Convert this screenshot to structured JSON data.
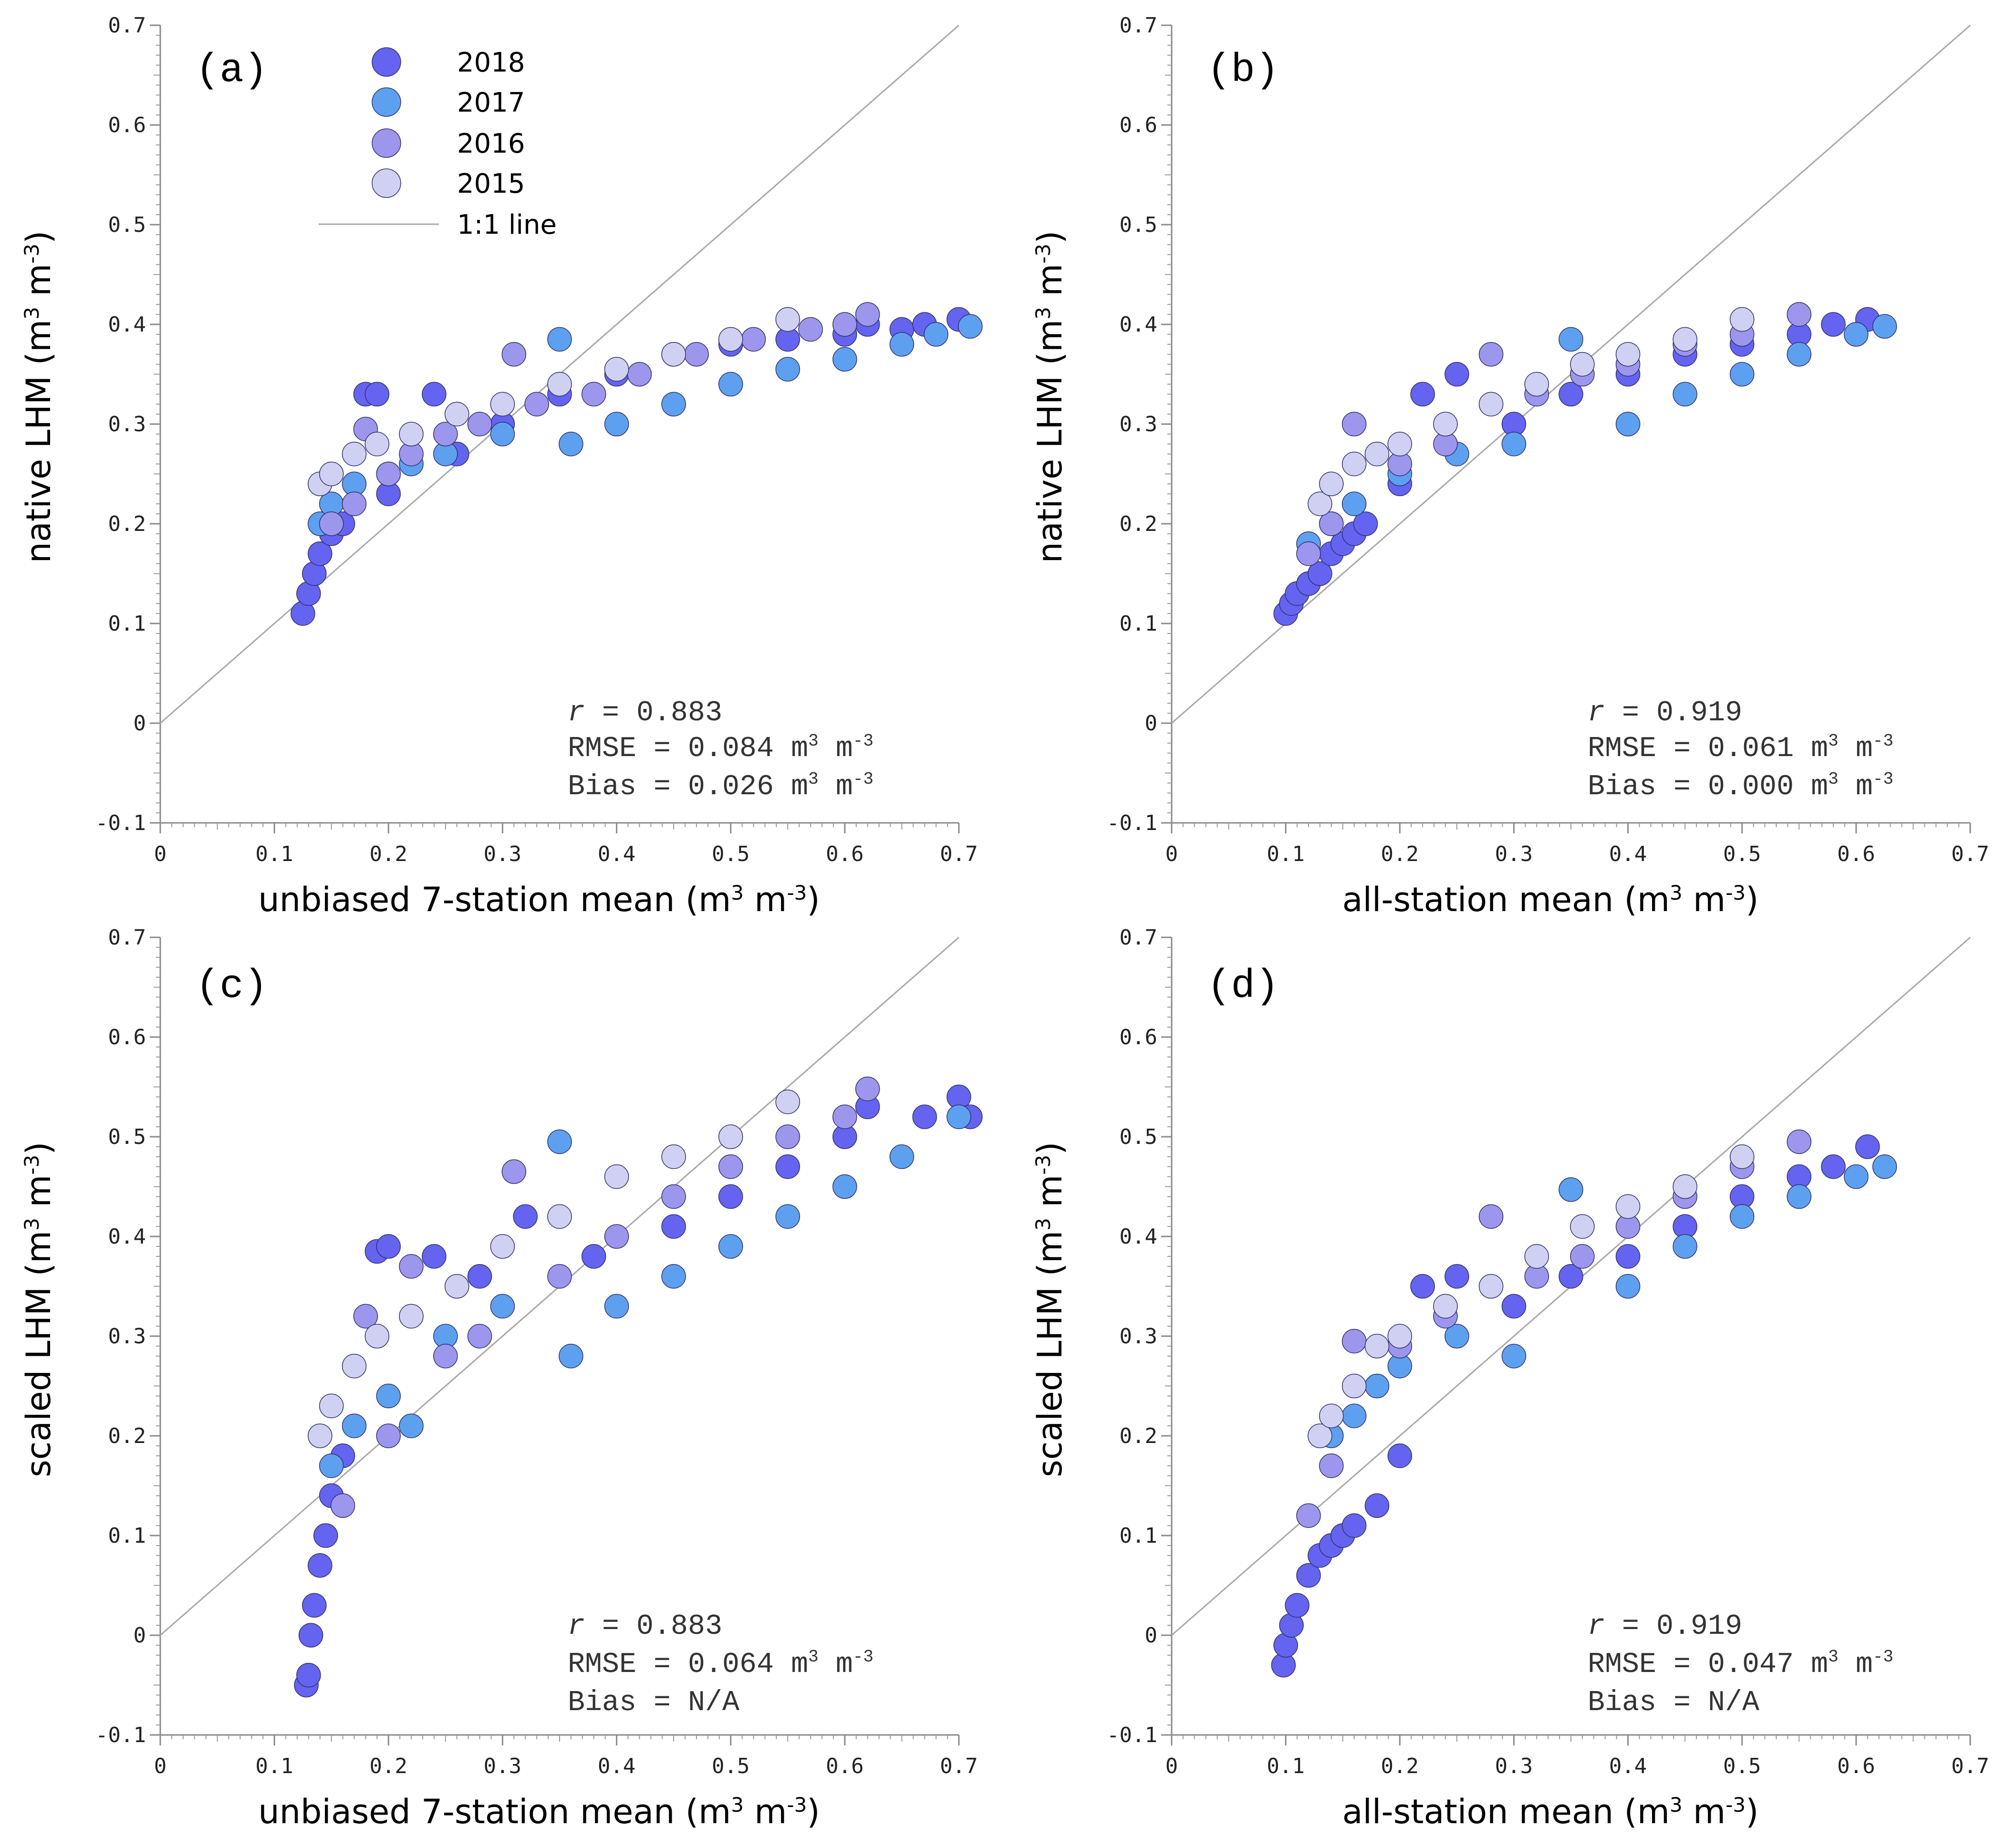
{
  "colors": {
    "2018": "#6464f0",
    "2017": "#5ea0f0",
    "2016": "#9c96ec",
    "2015": "#d0d0f2",
    "line": "#a8a8a8"
  },
  "legend": {
    "entries": [
      "2018",
      "2017",
      "2016",
      "2015"
    ],
    "line_label": "1:1 line"
  },
  "chart_data": [
    {
      "panel": "(a)",
      "type": "scatter",
      "xlabel": "unbiased 7-station mean (m³ m⁻³)",
      "xlabel_main": "unbiased 7-station mean (m",
      "ylabel_main": "native LHM (m",
      "xlim": [
        0,
        0.7
      ],
      "ylim": [
        -0.1,
        0.7
      ],
      "xticks": [
        "0",
        "0.1",
        "0.2",
        "0.3",
        "0.4",
        "0.5",
        "0.6",
        "0.7"
      ],
      "yticks": [
        "-0.1",
        "0",
        "0.1",
        "0.2",
        "0.3",
        "0.4",
        "0.5",
        "0.6",
        "0.7"
      ],
      "stats": {
        "r": "= 0.883",
        "rmse": "RMSE = 0.084 m",
        "bias": "Bias = 0.026 m",
        "bias_unit": true
      },
      "series": [
        {
          "name": "2018",
          "x": [
            0.125,
            0.13,
            0.135,
            0.14,
            0.15,
            0.16,
            0.18,
            0.19,
            0.2,
            0.24,
            0.26,
            0.3,
            0.35,
            0.4,
            0.45,
            0.5,
            0.55,
            0.6,
            0.62,
            0.65,
            0.67,
            0.7
          ],
          "y": [
            0.11,
            0.13,
            0.15,
            0.17,
            0.19,
            0.2,
            0.33,
            0.33,
            0.23,
            0.33,
            0.27,
            0.3,
            0.33,
            0.35,
            0.37,
            0.38,
            0.385,
            0.39,
            0.4,
            0.395,
            0.4,
            0.405
          ]
        },
        {
          "name": "2017",
          "x": [
            0.14,
            0.15,
            0.17,
            0.2,
            0.22,
            0.25,
            0.3,
            0.35,
            0.36,
            0.4,
            0.45,
            0.5,
            0.55,
            0.6,
            0.65,
            0.68,
            0.71
          ],
          "y": [
            0.2,
            0.22,
            0.24,
            0.25,
            0.26,
            0.27,
            0.29,
            0.385,
            0.28,
            0.3,
            0.32,
            0.34,
            0.355,
            0.365,
            0.38,
            0.39,
            0.398
          ]
        },
        {
          "name": "2016",
          "x": [
            0.15,
            0.17,
            0.18,
            0.2,
            0.22,
            0.25,
            0.28,
            0.31,
            0.33,
            0.38,
            0.42,
            0.47,
            0.52,
            0.57,
            0.6,
            0.62
          ],
          "y": [
            0.2,
            0.22,
            0.295,
            0.25,
            0.27,
            0.29,
            0.3,
            0.37,
            0.32,
            0.33,
            0.35,
            0.37,
            0.385,
            0.395,
            0.4,
            0.41
          ]
        },
        {
          "name": "2015",
          "x": [
            0.14,
            0.15,
            0.17,
            0.19,
            0.22,
            0.26,
            0.3,
            0.35,
            0.4,
            0.45,
            0.5,
            0.55
          ],
          "y": [
            0.24,
            0.25,
            0.27,
            0.28,
            0.29,
            0.31,
            0.32,
            0.34,
            0.355,
            0.37,
            0.385,
            0.405
          ]
        }
      ]
    },
    {
      "panel": "(b)",
      "type": "scatter",
      "xlabel_main": "all-station mean (m",
      "ylabel_main": "native LHM (m",
      "xlim": [
        0,
        0.7
      ],
      "ylim": [
        -0.1,
        0.7
      ],
      "xticks": [
        "0",
        "0.1",
        "0.2",
        "0.3",
        "0.4",
        "0.5",
        "0.6",
        "0.7"
      ],
      "yticks": [
        "-0.1",
        "0",
        "0.1",
        "0.2",
        "0.3",
        "0.4",
        "0.5",
        "0.6",
        "0.7"
      ],
      "stats": {
        "r": "= 0.919",
        "rmse": "RMSE = 0.061 m",
        "bias": "Bias = 0.000 m",
        "bias_unit": true
      },
      "series": [
        {
          "name": "2018",
          "x": [
            0.1,
            0.105,
            0.11,
            0.12,
            0.13,
            0.14,
            0.15,
            0.16,
            0.17,
            0.2,
            0.22,
            0.25,
            0.3,
            0.35,
            0.4,
            0.45,
            0.5,
            0.55,
            0.58,
            0.61
          ],
          "y": [
            0.11,
            0.12,
            0.13,
            0.14,
            0.15,
            0.17,
            0.18,
            0.19,
            0.2,
            0.24,
            0.33,
            0.35,
            0.3,
            0.33,
            0.35,
            0.37,
            0.38,
            0.39,
            0.4,
            0.405
          ]
        },
        {
          "name": "2017",
          "x": [
            0.12,
            0.14,
            0.16,
            0.2,
            0.25,
            0.3,
            0.35,
            0.4,
            0.45,
            0.5,
            0.55,
            0.6,
            0.625
          ],
          "y": [
            0.18,
            0.2,
            0.22,
            0.25,
            0.27,
            0.28,
            0.385,
            0.3,
            0.33,
            0.35,
            0.37,
            0.39,
            0.398
          ]
        },
        {
          "name": "2016",
          "x": [
            0.12,
            0.14,
            0.16,
            0.2,
            0.24,
            0.28,
            0.32,
            0.36,
            0.4,
            0.45,
            0.5,
            0.55
          ],
          "y": [
            0.17,
            0.2,
            0.3,
            0.26,
            0.28,
            0.37,
            0.33,
            0.35,
            0.36,
            0.38,
            0.39,
            0.41
          ]
        },
        {
          "name": "2015",
          "x": [
            0.13,
            0.14,
            0.16,
            0.18,
            0.2,
            0.24,
            0.28,
            0.32,
            0.36,
            0.4,
            0.45,
            0.5
          ],
          "y": [
            0.22,
            0.24,
            0.26,
            0.27,
            0.28,
            0.3,
            0.32,
            0.34,
            0.36,
            0.37,
            0.385,
            0.405
          ]
        }
      ]
    },
    {
      "panel": "(c)",
      "type": "scatter",
      "xlabel_main": "unbiased 7-station mean (m",
      "ylabel_main": "scaled LHM (m",
      "xlim": [
        0,
        0.7
      ],
      "ylim": [
        -0.1,
        0.7
      ],
      "xticks": [
        "0",
        "0.1",
        "0.2",
        "0.3",
        "0.4",
        "0.5",
        "0.6",
        "0.7"
      ],
      "yticks": [
        "-0.1",
        "0",
        "0.1",
        "0.2",
        "0.3",
        "0.4",
        "0.5",
        "0.6",
        "0.7"
      ],
      "stats": {
        "r": "= 0.883",
        "rmse": "RMSE = 0.064 m",
        "bias": "Bias = N/A",
        "bias_unit": false
      },
      "series": [
        {
          "name": "2018",
          "x": [
            0.128,
            0.13,
            0.132,
            0.135,
            0.14,
            0.145,
            0.15,
            0.16,
            0.19,
            0.2,
            0.24,
            0.28,
            0.32,
            0.38,
            0.45,
            0.5,
            0.55,
            0.6,
            0.62,
            0.67,
            0.7,
            0.71
          ],
          "y": [
            -0.05,
            -0.04,
            0.0,
            0.03,
            0.07,
            0.1,
            0.14,
            0.18,
            0.385,
            0.39,
            0.38,
            0.36,
            0.42,
            0.38,
            0.41,
            0.44,
            0.47,
            0.5,
            0.53,
            0.52,
            0.54,
            0.52
          ]
        },
        {
          "name": "2017",
          "x": [
            0.15,
            0.17,
            0.2,
            0.22,
            0.25,
            0.3,
            0.35,
            0.36,
            0.4,
            0.45,
            0.5,
            0.55,
            0.6,
            0.65,
            0.7
          ],
          "y": [
            0.17,
            0.21,
            0.24,
            0.21,
            0.3,
            0.33,
            0.495,
            0.28,
            0.33,
            0.36,
            0.39,
            0.42,
            0.45,
            0.48,
            0.52
          ]
        },
        {
          "name": "2016",
          "x": [
            0.16,
            0.18,
            0.2,
            0.22,
            0.25,
            0.28,
            0.31,
            0.35,
            0.4,
            0.45,
            0.5,
            0.55,
            0.6,
            0.62
          ],
          "y": [
            0.13,
            0.32,
            0.2,
            0.37,
            0.28,
            0.3,
            0.465,
            0.36,
            0.4,
            0.44,
            0.47,
            0.5,
            0.52,
            0.548
          ]
        },
        {
          "name": "2015",
          "x": [
            0.14,
            0.15,
            0.17,
            0.19,
            0.22,
            0.26,
            0.3,
            0.35,
            0.4,
            0.45,
            0.5,
            0.55
          ],
          "y": [
            0.2,
            0.23,
            0.27,
            0.3,
            0.32,
            0.35,
            0.39,
            0.42,
            0.46,
            0.48,
            0.5,
            0.535
          ]
        }
      ]
    },
    {
      "panel": "(d)",
      "type": "scatter",
      "xlabel_main": "all-station mean (m",
      "ylabel_main": "scaled LHM (m",
      "xlim": [
        0,
        0.7
      ],
      "ylim": [
        -0.1,
        0.7
      ],
      "xticks": [
        "0",
        "0.1",
        "0.2",
        "0.3",
        "0.4",
        "0.5",
        "0.6",
        "0.7"
      ],
      "yticks": [
        "-0.1",
        "0",
        "0.1",
        "0.2",
        "0.3",
        "0.4",
        "0.5",
        "0.6",
        "0.7"
      ],
      "stats": {
        "r": "= 0.919",
        "rmse": "RMSE = 0.047 m",
        "bias": "Bias = N/A",
        "bias_unit": false
      },
      "series": [
        {
          "name": "2018",
          "x": [
            0.098,
            0.1,
            0.105,
            0.11,
            0.12,
            0.13,
            0.14,
            0.15,
            0.16,
            0.18,
            0.2,
            0.22,
            0.25,
            0.3,
            0.35,
            0.4,
            0.45,
            0.5,
            0.55,
            0.58,
            0.61
          ],
          "y": [
            -0.03,
            -0.01,
            0.01,
            0.03,
            0.06,
            0.08,
            0.09,
            0.1,
            0.11,
            0.13,
            0.18,
            0.35,
            0.36,
            0.33,
            0.36,
            0.38,
            0.41,
            0.44,
            0.46,
            0.47,
            0.49
          ]
        },
        {
          "name": "2017",
          "x": [
            0.14,
            0.16,
            0.18,
            0.2,
            0.25,
            0.3,
            0.35,
            0.4,
            0.45,
            0.5,
            0.55,
            0.6,
            0.625
          ],
          "y": [
            0.2,
            0.22,
            0.25,
            0.27,
            0.3,
            0.28,
            0.447,
            0.35,
            0.39,
            0.42,
            0.44,
            0.46,
            0.47
          ]
        },
        {
          "name": "2016",
          "x": [
            0.12,
            0.14,
            0.16,
            0.2,
            0.24,
            0.28,
            0.32,
            0.36,
            0.4,
            0.45,
            0.5,
            0.55
          ],
          "y": [
            0.12,
            0.17,
            0.295,
            0.29,
            0.32,
            0.42,
            0.36,
            0.38,
            0.41,
            0.44,
            0.47,
            0.495
          ]
        },
        {
          "name": "2015",
          "x": [
            0.13,
            0.14,
            0.16,
            0.18,
            0.2,
            0.24,
            0.28,
            0.32,
            0.36,
            0.4,
            0.45,
            0.5
          ],
          "y": [
            0.2,
            0.22,
            0.25,
            0.29,
            0.3,
            0.33,
            0.35,
            0.38,
            0.41,
            0.43,
            0.45,
            0.48
          ]
        }
      ]
    }
  ]
}
